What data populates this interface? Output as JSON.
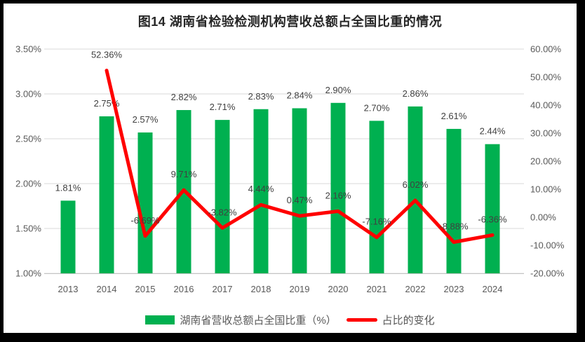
{
  "window": {
    "frame_color": "#000000",
    "canvas_color": "#FFFFFF"
  },
  "title": "图14 湖南省检验检测机构营收总额占全国比重的情况",
  "chart_data": {
    "type": "combo-bar-line",
    "title": "图14 湖南省检验检测机构营收总额占全国比重的情况",
    "categories": [
      "2013",
      "2014",
      "2015",
      "2016",
      "2017",
      "2018",
      "2019",
      "2020",
      "2021",
      "2022",
      "2023",
      "2024"
    ],
    "series": [
      {
        "name": "湖南省营收总额占全国比重（%）",
        "type": "bar",
        "axis": "left",
        "color": "#00B050",
        "values": [
          1.81,
          2.75,
          2.57,
          2.82,
          2.71,
          2.83,
          2.84,
          2.9,
          2.7,
          2.86,
          2.61,
          2.44
        ],
        "data_labels": [
          "1.81%",
          "2.75%",
          "2.57%",
          "2.82%",
          "2.71%",
          "2.83%",
          "2.84%",
          "2.90%",
          "2.70%",
          "2.86%",
          "2.61%",
          "2.44%"
        ]
      },
      {
        "name": "占比的变化",
        "type": "line",
        "axis": "right",
        "color": "#FF0000",
        "values": [
          null,
          52.36,
          -6.69,
          9.71,
          -3.82,
          4.44,
          0.47,
          2.16,
          -7.16,
          6.02,
          -8.88,
          -6.36
        ],
        "data_labels": [
          null,
          "52.36%",
          "-6.69%",
          "9.71%",
          "-3.82%",
          "4.44%",
          "0.47%",
          "2.16%",
          "-7.16%",
          "6.02%",
          "-8.88%",
          "-6.36%"
        ]
      }
    ],
    "left_axis": {
      "min": 1.0,
      "max": 3.5,
      "tick_values": [
        3.5,
        3.0,
        2.5,
        2.0,
        1.5,
        1.0
      ],
      "tick_labels": [
        "3.50%",
        "3.00%",
        "2.50%",
        "2.00%",
        "1.50%",
        "1.00%"
      ]
    },
    "right_axis": {
      "min": -20,
      "max": 60,
      "tick_values": [
        60,
        50,
        40,
        30,
        20,
        10,
        0,
        -10,
        -20
      ],
      "tick_labels": [
        "60.00%",
        "50.00%",
        "40.00%",
        "30.00%",
        "20.00%",
        "10.00%",
        "0.00%",
        "-10.00%",
        "-20.00%"
      ]
    },
    "gridlines": true,
    "legend_position": "bottom"
  },
  "colors": {
    "bar": "#00B050",
    "line": "#FF0000",
    "grid": "#D9D9D9",
    "axis_line": "#C6C6C6",
    "axis_text": "#595959",
    "data_label_text": "#404040",
    "title_text": "#262626",
    "legend_text": "#595959",
    "frame": "#000000"
  }
}
